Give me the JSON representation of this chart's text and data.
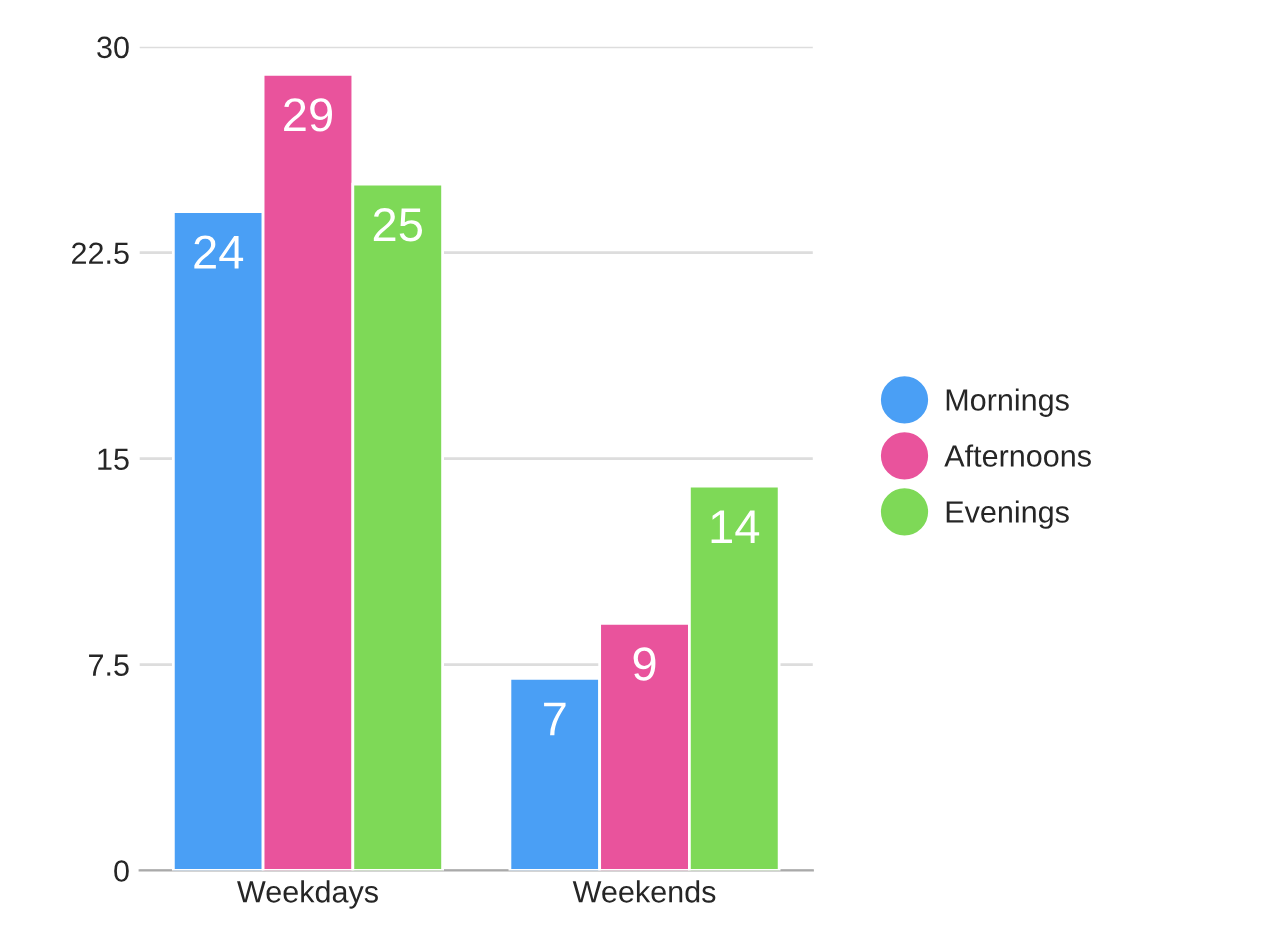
{
  "chart_data": {
    "type": "bar",
    "categories": [
      "Weekdays",
      "Weekends"
    ],
    "series": [
      {
        "name": "Mornings",
        "color": "#4a9ff5",
        "values": [
          24,
          7
        ]
      },
      {
        "name": "Afternoons",
        "color": "#e9539c",
        "values": [
          29,
          9
        ]
      },
      {
        "name": "Evenings",
        "color": "#7ed957",
        "values": [
          25,
          14
        ]
      }
    ],
    "ylim": [
      0,
      30
    ],
    "yticks": [
      0,
      7.5,
      15,
      22.5,
      30
    ],
    "grid": "y",
    "legend": "right",
    "data_labels": true
  }
}
